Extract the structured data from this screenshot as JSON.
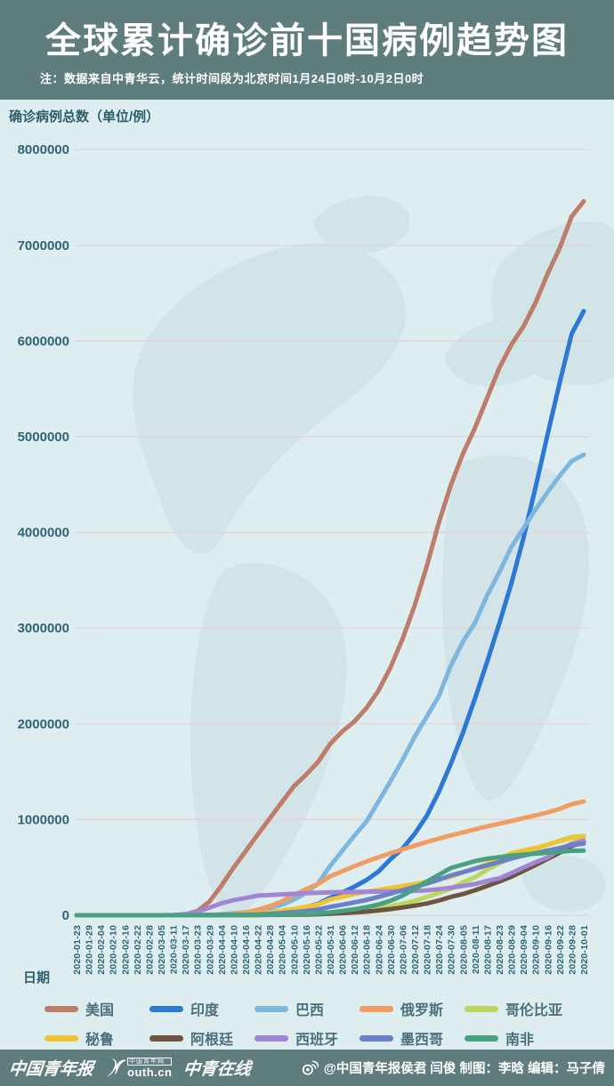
{
  "colors": {
    "band": "#5e7d7c",
    "page_background": "#ddedf0",
    "map_silhouette": "#c9dde0",
    "gridline": "#e3d3cf",
    "tick_text": "#2e6474",
    "legend_text": "#4d6f79",
    "title_text": "#ffffff"
  },
  "header": {
    "title": "全球累计确诊前十国病例趋势图",
    "note": "注：数据来自中青华云，统计时间段为北京时间1月24日0时-10月2日0时"
  },
  "chart": {
    "y_title": "确诊病例总数（单位/例）",
    "x_title": "日期",
    "y_ticks": [
      "8000000",
      "7000000",
      "6000000",
      "5000000",
      "4000000",
      "3000000",
      "2000000",
      "1000000",
      "0"
    ]
  },
  "chart_data": {
    "type": "line",
    "title": "全球累计确诊前十国病例趋势图",
    "xlabel": "日期",
    "ylabel": "确诊病例总数（单位/例）",
    "ylim": [
      0,
      8000000
    ],
    "grid": true,
    "legend_position": "bottom",
    "x": [
      "2020-01-23",
      "2020-01-29",
      "2020-02-04",
      "2020-02-10",
      "2020-02-16",
      "2020-02-22",
      "2020-02-28",
      "2020-03-05",
      "2020-03-11",
      "2020-03-17",
      "2020-03-23",
      "2020-03-29",
      "2020-04-04",
      "2020-04-10",
      "2020-04-16",
      "2020-04-22",
      "2020-04-28",
      "2020-05-04",
      "2020-05-10",
      "2020-05-16",
      "2020-05-22",
      "2020-05-31",
      "2020-06-06",
      "2020-06-12",
      "2020-06-18",
      "2020-06-24",
      "2020-06-30",
      "2020-07-06",
      "2020-07-12",
      "2020-07-18",
      "2020-07-24",
      "2020-07-30",
      "2020-08-05",
      "2020-08-11",
      "2020-08-17",
      "2020-08-23",
      "2020-08-29",
      "2020-09-04",
      "2020-09-10",
      "2020-09-16",
      "2020-09-22",
      "2020-09-28",
      "2020-10-01"
    ],
    "series": [
      {
        "name": "美国",
        "color": "#be7c6b",
        "values": [
          1,
          5,
          11,
          12,
          15,
          15,
          60,
          220,
          1300,
          6400,
          43800,
          140900,
          308900,
          496500,
          667800,
          842600,
          1010500,
          1180000,
          1347900,
          1467800,
          1601400,
          1790200,
          1920100,
          2023400,
          2163300,
          2347100,
          2590600,
          2888700,
          3236100,
          3647700,
          4100000,
          4495000,
          4823900,
          5094400,
          5403200,
          5715600,
          5961100,
          6150000,
          6397500,
          6700000,
          6970000,
          7300000,
          7460000
        ]
      },
      {
        "name": "印度",
        "color": "#2d78d4",
        "values": [
          0,
          0,
          3,
          3,
          3,
          3,
          3,
          31,
          62,
          140,
          500,
          1000,
          3100,
          6800,
          12800,
          21400,
          31300,
          42500,
          62900,
          85900,
          118400,
          182100,
          236700,
          297500,
          366900,
          456100,
          585500,
          697400,
          850000,
          1038700,
          1288100,
          1583800,
          1908300,
          2268700,
          2647700,
          3044900,
          3463900,
          3936700,
          4465900,
          5020400,
          5562700,
          6074700,
          6312600
        ]
      },
      {
        "name": "巴西",
        "color": "#7db7de",
        "values": [
          0,
          0,
          0,
          0,
          0,
          0,
          1,
          2,
          50,
          300,
          1900,
          4300,
          10300,
          19600,
          30400,
          45800,
          73200,
          107800,
          162700,
          233100,
          330900,
          514800,
          672800,
          829900,
          978100,
          1188600,
          1402000,
          1623300,
          1864700,
          2074900,
          2287500,
          2610100,
          2859100,
          3057500,
          3340200,
          3582400,
          3846200,
          4041600,
          4238400,
          4419100,
          4591600,
          4745500,
          4810900
        ]
      },
      {
        "name": "俄罗斯",
        "color": "#f19c61",
        "values": [
          0,
          0,
          2,
          2,
          2,
          2,
          2,
          4,
          20,
          100,
          400,
          1500,
          4700,
          12000,
          28000,
          58000,
          93500,
          145300,
          209700,
          272000,
          326400,
          405800,
          458700,
          511400,
          561100,
          606000,
          647800,
          687800,
          727200,
          765400,
          800000,
          834500,
          866600,
          897600,
          927700,
          956700,
          985300,
          1015100,
          1042800,
          1073800,
          1111600,
          1159600,
          1188900
        ]
      },
      {
        "name": "哥伦比亚",
        "color": "#bcd65c",
        "values": [
          0,
          0,
          0,
          0,
          0,
          0,
          0,
          0,
          0,
          70,
          300,
          700,
          1400,
          2500,
          3200,
          4100,
          5600,
          7700,
          10500,
          14200,
          18300,
          29400,
          38100,
          46900,
          60200,
          78000,
          95300,
          117400,
          150400,
          190700,
          233500,
          276100,
          345700,
          397600,
          476700,
          541100,
          607900,
          650100,
          694700,
          736400,
          777500,
          818200,
          829700
        ]
      },
      {
        "name": "秘鲁",
        "color": "#eec531",
        "values": [
          0,
          0,
          0,
          0,
          0,
          0,
          0,
          0,
          0,
          100,
          400,
          900,
          1700,
          5900,
          12500,
          19300,
          31200,
          47400,
          67300,
          88500,
          111700,
          164500,
          191800,
          220700,
          244400,
          264700,
          285200,
          305700,
          326200,
          349500,
          375900,
          400700,
          447600,
          489700,
          535900,
          594300,
          647200,
          676800,
          702800,
          738000,
          772900,
          805300,
          814800
        ]
      },
      {
        "name": "阿根廷",
        "color": "#6f5440",
        "values": [
          0,
          0,
          0,
          0,
          0,
          0,
          0,
          0,
          0,
          70,
          300,
          700,
          1400,
          2000,
          2600,
          3200,
          4100,
          4900,
          6000,
          7800,
          10600,
          16800,
          22000,
          28800,
          37500,
          49800,
          64500,
          80400,
          100100,
          122500,
          153500,
          191300,
          221400,
          260900,
          305900,
          350900,
          401200,
          461900,
          524200,
          589000,
          652200,
          723100,
          765000
        ]
      },
      {
        "name": "西班牙",
        "color": "#a086d4",
        "values": [
          0,
          0,
          0,
          2,
          2,
          30,
          70,
          300,
          2200,
          11200,
          33100,
          78800,
          124700,
          157000,
          180700,
          204200,
          210800,
          217500,
          224400,
          230200,
          234800,
          239400,
          241300,
          243000,
          245300,
          247100,
          249300,
          252100,
          255000,
          260300,
          272400,
          288500,
          305800,
          326600,
          359100,
          386100,
          439300,
          498000,
          554100,
          603200,
          682300,
          748300,
          778600
        ]
      },
      {
        "name": "墨西哥",
        "color": "#6d80c6",
        "values": [
          0,
          0,
          0,
          0,
          0,
          0,
          0,
          0,
          0,
          90,
          300,
          800,
          1900,
          3400,
          5800,
          9500,
          15000,
          23500,
          33500,
          45000,
          59600,
          87500,
          110000,
          133900,
          159800,
          191400,
          226100,
          261800,
          295300,
          331300,
          370700,
          416200,
          449900,
          485800,
          522200,
          556200,
          591700,
          623100,
          647500,
          676500,
          700600,
          733700,
          748300
        ]
      },
      {
        "name": "南非",
        "color": "#49a183",
        "values": [
          0,
          0,
          0,
          0,
          0,
          0,
          0,
          0,
          0,
          90,
          400,
          1300,
          1600,
          2000,
          2500,
          3500,
          4800,
          7200,
          10000,
          13500,
          19100,
          30300,
          45000,
          61900,
          83900,
          111800,
          151200,
          205700,
          276200,
          350900,
          421900,
          493200,
          529900,
          566100,
          589900,
          607000,
          622500,
          633000,
          644400,
          653400,
          663200,
          672600,
          676100
        ]
      }
    ]
  },
  "footer": {
    "logo_paper": "中国青年报",
    "logo_youth_url": "outh.cn",
    "logo_youth_badge": "中国青年网",
    "logo_online": "中青在线",
    "credit": "@中国青年报侯君 闫俊 制图：李晗 编辑：马子倩"
  }
}
